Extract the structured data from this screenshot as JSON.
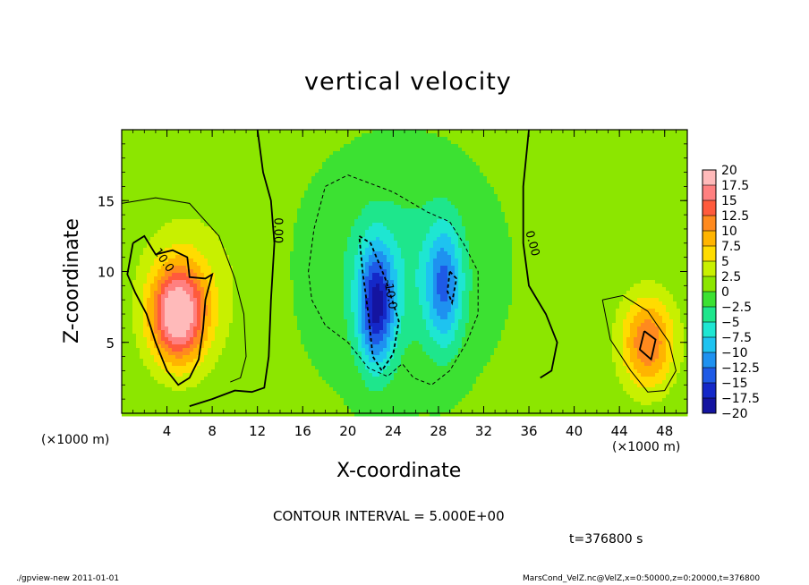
{
  "figure": {
    "title": "vertical velocity",
    "xlabel": "X-coordinate",
    "ylabel": "Z-coordinate",
    "x_unit_left": "(×1000 m)",
    "x_unit_right": "(×1000 m)",
    "contour_interval": "CONTOUR INTERVAL = 5.000E+00",
    "time_label": "t=376800 s",
    "footer_left": "./gpview-new   2011-01-01",
    "footer_right": "MarsCond_VelZ.nc@VelZ,x=0:50000,z=0:20000,t=376800"
  },
  "chart_data": {
    "type": "heatmap",
    "title": "vertical velocity",
    "xlabel": "X-coordinate",
    "ylabel": "Z-coordinate",
    "xlim": [
      0,
      50
    ],
    "ylim": [
      0,
      20
    ],
    "xticks": [
      4,
      8,
      12,
      16,
      20,
      24,
      28,
      32,
      36,
      40,
      44,
      48
    ],
    "yticks": [
      5,
      10,
      15
    ],
    "color_levels": [
      20,
      17.5,
      15,
      12.5,
      10,
      7.5,
      5,
      2.5,
      0,
      -2.5,
      -5,
      -7.5,
      -10,
      -12.5,
      -15,
      -17.5,
      -20
    ],
    "colorbar_labels": [
      "20",
      "17.5",
      "15",
      "12.5",
      "10",
      "7.5",
      "5",
      "2.5",
      "0",
      "−2.5",
      "−5",
      "−7.5",
      "−10",
      "−12.5",
      "−15",
      "−17.5",
      "−20"
    ],
    "colorbar_colors": [
      "#ffbaba",
      "#ff8080",
      "#ff5a3c",
      "#ff8a1e",
      "#ffb400",
      "#ffdc00",
      "#c8f000",
      "#8ce600",
      "#3ce132",
      "#1ee68c",
      "#1ee6d2",
      "#1ec3f0",
      "#1e91f0",
      "#1e5ae6",
      "#1428c8",
      "#1414a0",
      "#780fc3"
    ],
    "contour_interval": 5,
    "contour_labels": [
      "10.0",
      "0.00",
      "-10.0",
      "0.00"
    ],
    "features": [
      {
        "kind": "updraft",
        "x": 5,
        "z": 7,
        "peak": 19
      },
      {
        "kind": "updraft",
        "x": 46.5,
        "z": 5,
        "peak": 12
      },
      {
        "kind": "downdraft",
        "x": 22.5,
        "z": 7.5,
        "peak": -16
      },
      {
        "kind": "downdraft",
        "x": 28.5,
        "z": 9,
        "peak": -11
      }
    ]
  }
}
